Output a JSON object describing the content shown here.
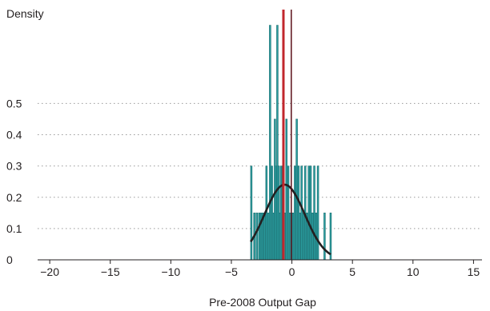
{
  "chart_data": {
    "type": "bar",
    "ylabel": "Density",
    "xlabel": "Pre-2008 Output Gap",
    "xlim": [
      -21,
      15.7
    ],
    "ylim": [
      0,
      0.8
    ],
    "xticks": [
      -20,
      -15,
      -10,
      -5,
      0,
      5,
      10,
      15
    ],
    "yticks": [
      0,
      0.1,
      0.2,
      0.3,
      0.4,
      0.5
    ],
    "ytick_labels": [
      "0",
      "0.1",
      "0.2",
      "0.3",
      "0.4",
      "0.5"
    ],
    "xtick_labels": [
      "−20",
      "−15",
      "−10",
      "−5",
      "0",
      "5",
      "10",
      "15"
    ],
    "grid": "horizontal dotted",
    "bin_width": 0.127,
    "bins": [
      {
        "x": -3.35,
        "density": 0.3
      },
      {
        "x": -3.1,
        "density": 0.15
      },
      {
        "x": -2.9,
        "density": 0.15
      },
      {
        "x": -2.7,
        "density": 0.15
      },
      {
        "x": -2.55,
        "density": 0.15
      },
      {
        "x": -2.4,
        "density": 0.15
      },
      {
        "x": -2.25,
        "density": 0.15
      },
      {
        "x": -2.1,
        "density": 0.3
      },
      {
        "x": -1.95,
        "density": 0.15
      },
      {
        "x": -1.8,
        "density": 0.75
      },
      {
        "x": -1.65,
        "density": 0.3
      },
      {
        "x": -1.5,
        "density": 0.15
      },
      {
        "x": -1.4,
        "density": 0.45
      },
      {
        "x": -1.3,
        "density": 0.3
      },
      {
        "x": -1.2,
        "density": 0.75
      },
      {
        "x": -1.1,
        "density": 0.3
      },
      {
        "x": -1.0,
        "density": 0.15
      },
      {
        "x": -0.9,
        "density": 0.3
      },
      {
        "x": -0.75,
        "density": 0.3
      },
      {
        "x": -0.6,
        "density": 0.15
      },
      {
        "x": -0.45,
        "density": 0.45
      },
      {
        "x": -0.3,
        "density": 0.3
      },
      {
        "x": -0.15,
        "density": 0.15
      },
      {
        "x": 0.0,
        "density": 0.15
      },
      {
        "x": 0.1,
        "density": 0.15
      },
      {
        "x": 0.25,
        "density": 0.3
      },
      {
        "x": 0.4,
        "density": 0.45
      },
      {
        "x": 0.55,
        "density": 0.3
      },
      {
        "x": 0.65,
        "density": 0.15
      },
      {
        "x": 0.8,
        "density": 0.3
      },
      {
        "x": 0.95,
        "density": 0.15
      },
      {
        "x": 1.1,
        "density": 0.3
      },
      {
        "x": 1.25,
        "density": 0.15
      },
      {
        "x": 1.4,
        "density": 0.3
      },
      {
        "x": 1.55,
        "density": 0.3
      },
      {
        "x": 1.7,
        "density": 0.15
      },
      {
        "x": 1.85,
        "density": 0.3
      },
      {
        "x": 2.0,
        "density": 0.15
      },
      {
        "x": 2.15,
        "density": 0.3
      },
      {
        "x": 2.7,
        "density": 0.15
      },
      {
        "x": 3.2,
        "density": 0.15
      }
    ],
    "normal_curve": {
      "mean": -0.6,
      "sd": 1.66,
      "range": [
        -3.4,
        3.2
      ],
      "color": "#231f20"
    },
    "reference_lines": [
      {
        "x": -0.7,
        "color": "#c1272d"
      },
      {
        "x": -0.05,
        "color": "#5a1018"
      }
    ],
    "bar_color": "#2a9d9f",
    "bar_edge_color": "#1d6e70"
  }
}
